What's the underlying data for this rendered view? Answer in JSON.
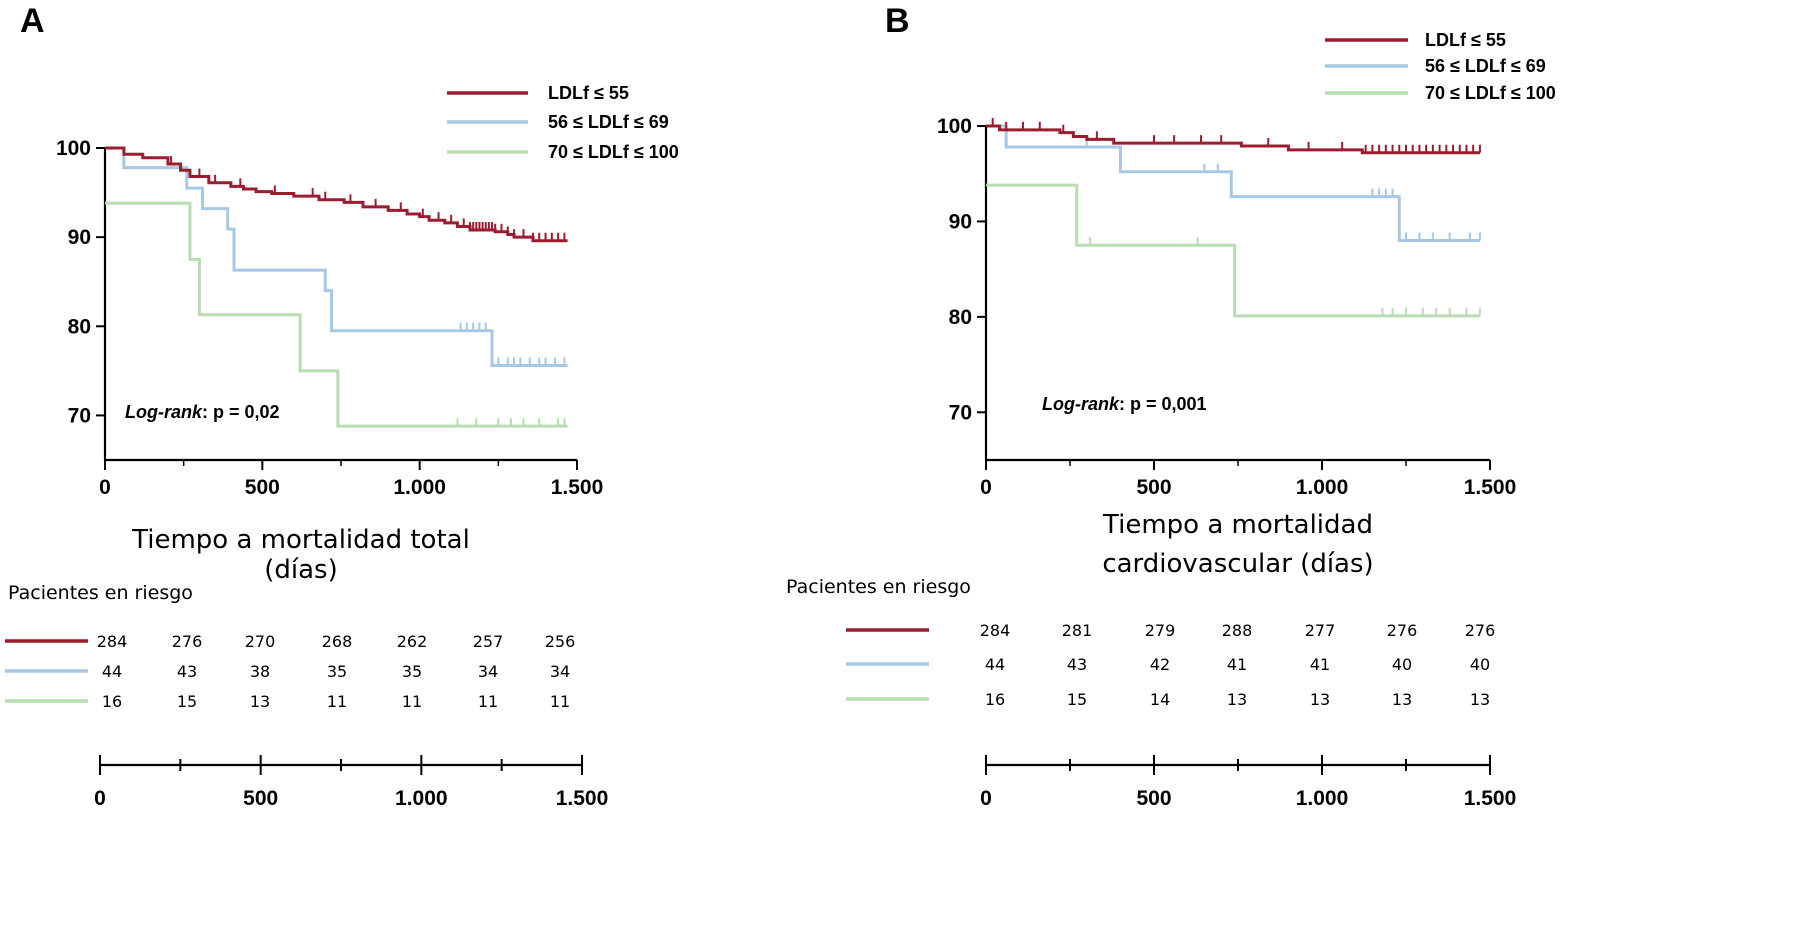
{
  "colors": {
    "series": [
      "#9b1c2e",
      "#a7c7e7",
      "#b9ddb2"
    ],
    "axis": "#000000",
    "background": "#ffffff"
  },
  "chart_data": [
    {
      "type": "line",
      "subtype": "kaplan-meier step",
      "panel_label": "A",
      "title": "",
      "xlabel_lines": [
        "Tiempo a mortalidad total",
        "(días)"
      ],
      "ylabel": "",
      "xlim": [
        0,
        1500
      ],
      "ylim": [
        65,
        100
      ],
      "x_ticks": [
        0,
        500,
        1000,
        1500
      ],
      "x_tick_labels": [
        "0",
        "500",
        "1.000",
        "1.500"
      ],
      "y_ticks": [
        70,
        80,
        90,
        100
      ],
      "y_tick_labels": [
        "70",
        "80",
        "90",
        "100"
      ],
      "legend": {
        "placement": "top-right",
        "labels": [
          "LDLf ≤ 55",
          "56 ≤ LDLf ≤ 69",
          "70 ≤ LDLf ≤ 100"
        ]
      },
      "annotation": {
        "italic": "Log-rank",
        "rest": ": p = 0,02"
      },
      "grid": false,
      "series": [
        {
          "name": "LDLf ≤ 55",
          "steps": [
            [
              0,
              100
            ],
            [
              60,
              99.3
            ],
            [
              120,
              98.9
            ],
            [
              200,
              98.2
            ],
            [
              240,
              97.5
            ],
            [
              270,
              96.8
            ],
            [
              330,
              96.1
            ],
            [
              400,
              95.7
            ],
            [
              440,
              95.4
            ],
            [
              480,
              95.1
            ],
            [
              530,
              94.9
            ],
            [
              600,
              94.6
            ],
            [
              680,
              94.2
            ],
            [
              760,
              93.9
            ],
            [
              820,
              93.4
            ],
            [
              900,
              93
            ],
            [
              960,
              92.6
            ],
            [
              1000,
              92.3
            ],
            [
              1030,
              91.9
            ],
            [
              1080,
              91.6
            ],
            [
              1120,
              91.2
            ],
            [
              1160,
              90.8
            ],
            [
              1240,
              90.6
            ],
            [
              1280,
              90.3
            ],
            [
              1300,
              90
            ],
            [
              1360,
              89.6
            ],
            [
              1470,
              89.6
            ]
          ],
          "censor_x": [
            210,
            300,
            350,
            430,
            540,
            660,
            700,
            780,
            860,
            940,
            1010,
            1060,
            1100,
            1140,
            1160,
            1170,
            1180,
            1190,
            1200,
            1210,
            1220,
            1230,
            1240,
            1260,
            1280,
            1300,
            1330,
            1360,
            1380,
            1400,
            1420,
            1440,
            1460
          ]
        },
        {
          "name": "56 ≤ LDLf ≤ 69",
          "steps": [
            [
              0,
              100
            ],
            [
              60,
              97.8
            ],
            [
              260,
              95.5
            ],
            [
              310,
              93.2
            ],
            [
              390,
              90.9
            ],
            [
              410,
              86.3
            ],
            [
              700,
              84
            ],
            [
              720,
              79.5
            ],
            [
              1230,
              75.6
            ],
            [
              1470,
              75.6
            ]
          ],
          "censor_x": [
            1130,
            1150,
            1170,
            1190,
            1210,
            1250,
            1280,
            1300,
            1320,
            1350,
            1380,
            1400,
            1430,
            1460
          ]
        },
        {
          "name": "70 ≤ LDLf ≤ 100",
          "steps": [
            [
              0,
              93.8
            ],
            [
              270,
              87.5
            ],
            [
              300,
              81.3
            ],
            [
              620,
              75
            ],
            [
              740,
              68.8
            ],
            [
              1470,
              68.8
            ]
          ],
          "censor_x": [
            1120,
            1180,
            1250,
            1290,
            1330,
            1380,
            1440,
            1460
          ]
        }
      ],
      "risk_table": {
        "title": "Pacientes en riesgo",
        "rows": [
          [
            "284",
            "276",
            "270",
            "268",
            "262",
            "257",
            "256"
          ],
          [
            "44",
            "43",
            "38",
            "35",
            "35",
            "34",
            "34"
          ],
          [
            "16",
            "15",
            "13",
            "11",
            "11",
            "11",
            "11"
          ]
        ],
        "axis_tick_labels": [
          "0",
          "500",
          "1.000",
          "1.500"
        ]
      }
    },
    {
      "type": "line",
      "subtype": "kaplan-meier step",
      "panel_label": "B",
      "title": "",
      "xlabel_lines": [
        "Tiempo a mortalidad",
        "cardiovascular (días)"
      ],
      "ylabel": "",
      "xlim": [
        0,
        1500
      ],
      "ylim": [
        65,
        100
      ],
      "x_ticks": [
        0,
        500,
        1000,
        1500
      ],
      "x_tick_labels": [
        "0",
        "500",
        "1.000",
        "1.500"
      ],
      "y_ticks": [
        70,
        80,
        90,
        100
      ],
      "y_tick_labels": [
        "70",
        "80",
        "90",
        "100"
      ],
      "legend": {
        "placement": "top-right",
        "labels": [
          "LDLf ≤ 55",
          "56 ≤ LDLf ≤ 69",
          "70 ≤ LDLf ≤ 100"
        ]
      },
      "annotation": {
        "italic": "Log-rank",
        "rest": ": p = 0,001"
      },
      "grid": false,
      "series": [
        {
          "name": "LDLf ≤ 55",
          "steps": [
            [
              0,
              100
            ],
            [
              40,
              99.6
            ],
            [
              220,
              99.3
            ],
            [
              260,
              98.9
            ],
            [
              300,
              98.6
            ],
            [
              380,
              98.2
            ],
            [
              760,
              97.9
            ],
            [
              900,
              97.5
            ],
            [
              1120,
              97.2
            ],
            [
              1470,
              97.2
            ]
          ],
          "censor_x": [
            20,
            60,
            110,
            160,
            230,
            330,
            500,
            560,
            640,
            700,
            840,
            960,
            1060,
            1130,
            1150,
            1170,
            1190,
            1210,
            1230,
            1250,
            1270,
            1290,
            1310,
            1330,
            1350,
            1370,
            1390,
            1410,
            1430,
            1450,
            1470
          ]
        },
        {
          "name": "56 ≤ LDLf ≤ 69",
          "steps": [
            [
              0,
              100
            ],
            [
              60,
              97.8
            ],
            [
              400,
              95.2
            ],
            [
              730,
              92.6
            ],
            [
              1230,
              88
            ],
            [
              1470,
              88
            ]
          ],
          "censor_x": [
            300,
            650,
            690,
            1150,
            1170,
            1190,
            1210,
            1250,
            1290,
            1330,
            1380,
            1440,
            1470
          ]
        },
        {
          "name": "70 ≤ LDLf ≤ 100",
          "steps": [
            [
              0,
              93.8
            ],
            [
              270,
              87.5
            ],
            [
              740,
              80.1
            ],
            [
              1470,
              80.1
            ]
          ],
          "censor_x": [
            310,
            630,
            1180,
            1210,
            1250,
            1300,
            1340,
            1380,
            1430,
            1470
          ]
        }
      ],
      "risk_table": {
        "title": "Pacientes en riesgo",
        "rows": [
          [
            "284",
            "281",
            "279",
            "288",
            "277",
            "276",
            "276"
          ],
          [
            "44",
            "43",
            "42",
            "41",
            "41",
            "40",
            "40"
          ],
          [
            "16",
            "15",
            "14",
            "13",
            "13",
            "13",
            "13"
          ]
        ],
        "axis_tick_labels": [
          "0",
          "500",
          "1.000",
          "1.500"
        ]
      }
    }
  ]
}
